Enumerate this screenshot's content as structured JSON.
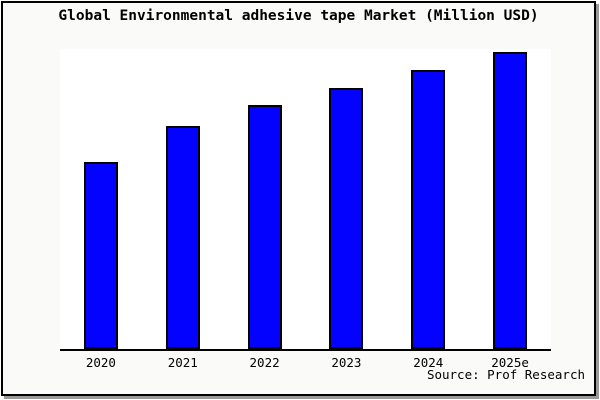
{
  "figure": {
    "title": "Global Environmental adhesive tape Market (Million USD)",
    "source": "Source: Prof Research"
  },
  "chart_data": {
    "type": "bar",
    "title": "Global Environmental adhesive tape Market (Million USD)",
    "categories": [
      "2020",
      "2021",
      "2022",
      "2023",
      "2024",
      "2025e"
    ],
    "values": [
      63,
      75,
      82,
      88,
      94,
      100
    ],
    "values_unit": "relative (% of tallest bar; y-axis has no visible scale)",
    "ylim": [
      0,
      101
    ],
    "xlabel": "",
    "ylabel": "",
    "grid": false,
    "legend_position": "none",
    "source": "Source: Prof Research",
    "colors": {
      "bar_fill": "#0202fe",
      "bar_border": "#000000",
      "axis_line": "#000000",
      "plot_background": "#ffffff",
      "figure_background": "#fafaf8",
      "frame_border": "#000000",
      "shadow": "#999999",
      "text": "#000000"
    }
  }
}
